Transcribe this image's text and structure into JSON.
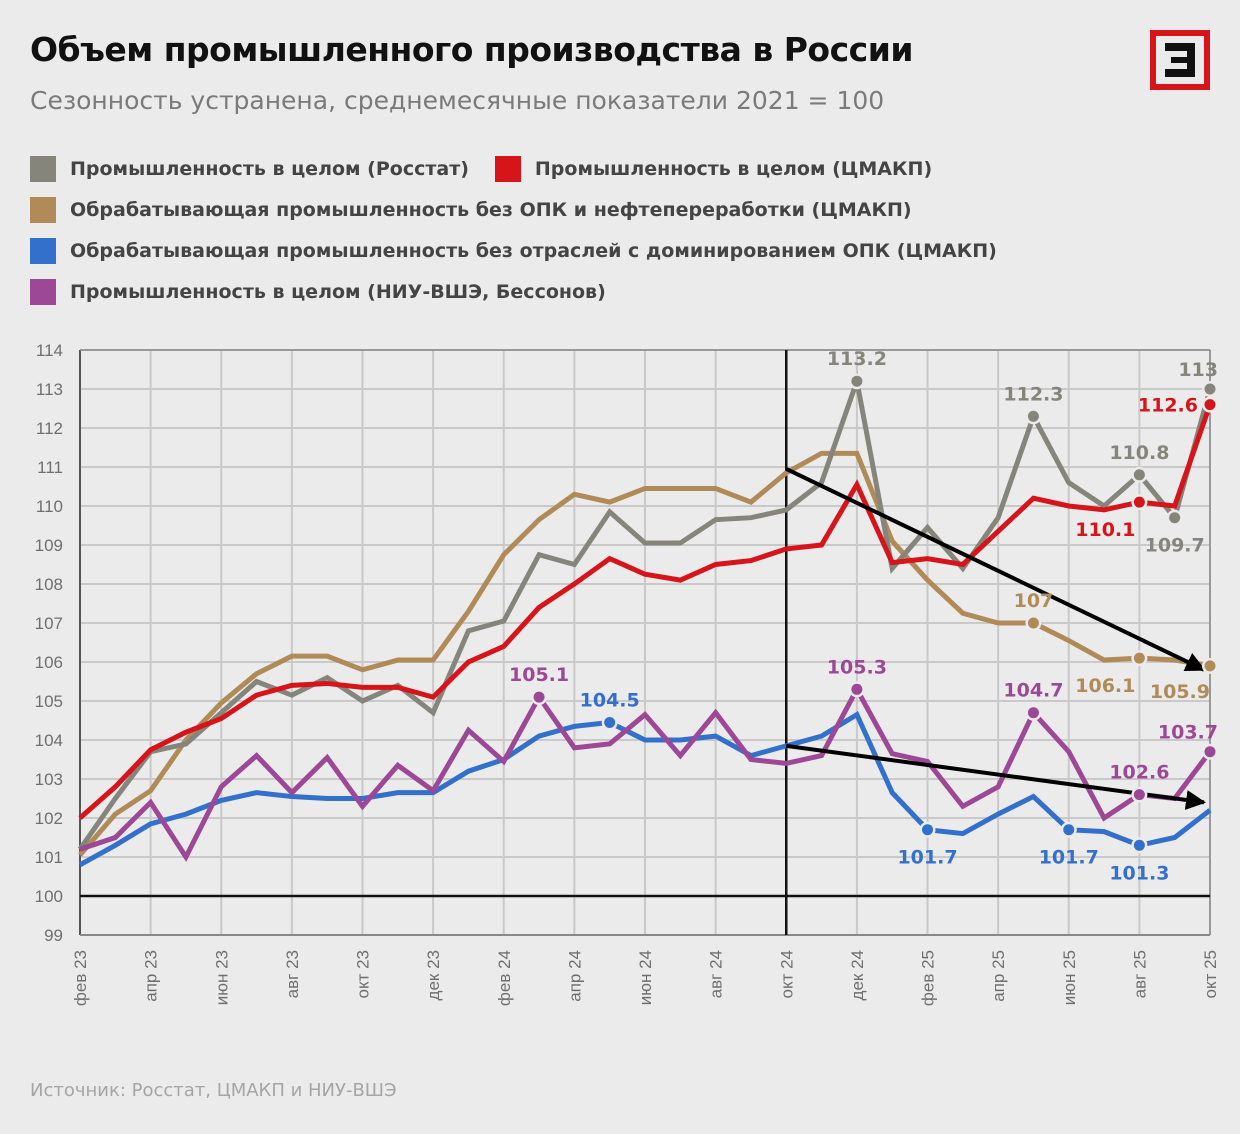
{
  "header": {
    "title": "Объем промышленного производства в России",
    "subtitle": "Сезонность устранена, среднемесячные показатели 2021 = 100",
    "logo_text": "Э"
  },
  "source": "Источник: Росстат, ЦМАКП и НИУ-ВШЭ",
  "chart_data": {
    "type": "line",
    "title": "Объем промышленного производства в России",
    "subtitle": "Сезонность устранена, среднемесячные показатели 2021 = 100",
    "ylim": [
      99,
      114
    ],
    "yticks": [
      99,
      100,
      101,
      102,
      103,
      104,
      105,
      106,
      107,
      108,
      109,
      110,
      111,
      112,
      113,
      114
    ],
    "grid": true,
    "legend_position": "top",
    "categories": [
      "фев 23",
      "мар 23",
      "апр 23",
      "май 23",
      "июн 23",
      "июл 23",
      "авг 23",
      "сен 23",
      "окт 23",
      "ноя 23",
      "дек 23",
      "янв 24",
      "фев 24",
      "мар 24",
      "апр 24",
      "май 24",
      "июн 24",
      "июл 24",
      "авг 24",
      "сен 24",
      "окт 24",
      "ноя 24",
      "дек 24",
      "янв 25",
      "фев 25",
      "мар 25",
      "апр 25",
      "май 25",
      "июн 25",
      "июл 25",
      "авг 25",
      "сен 25",
      "окт 25"
    ],
    "xtick_labels": [
      "фев 23",
      "апр 23",
      "июн 23",
      "авг 23",
      "окт 23",
      "дек 23",
      "фев 24",
      "апр 24",
      "июн 24",
      "авг 24",
      "окт 24",
      "дек 24",
      "фев 25",
      "апр 25",
      "июн 25",
      "авг 25",
      "окт 25"
    ],
    "reference_lines": {
      "vertical_at": "окт 24",
      "horizontal_at": 100
    },
    "trend_arrows": [
      {
        "from": [
          "окт 24",
          110.95
        ],
        "to": [
          "окт 25",
          105.8
        ]
      },
      {
        "from": [
          "окт 24",
          103.85
        ],
        "to": [
          "окт 25",
          102.4
        ]
      }
    ],
    "series": [
      {
        "name": "Промышленность в целом (Росстат)",
        "color": "#86857c",
        "values": [
          101.2,
          102.5,
          103.7,
          103.9,
          104.7,
          105.5,
          105.15,
          105.6,
          105.0,
          105.4,
          104.7,
          106.8,
          107.05,
          108.75,
          108.5,
          109.85,
          109.05,
          109.05,
          109.65,
          109.7,
          109.9,
          110.6,
          113.2,
          108.4,
          109.45,
          108.4,
          109.7,
          112.3,
          110.6,
          110.0,
          110.8,
          109.7,
          113.0
        ]
      },
      {
        "name": "Промышленность в целом (ЦМАКП)",
        "color": "#d7141a",
        "values": [
          102.0,
          102.8,
          103.75,
          104.2,
          104.55,
          105.15,
          105.4,
          105.45,
          105.35,
          105.35,
          105.1,
          106.0,
          106.4,
          107.4,
          108.0,
          108.65,
          108.25,
          108.1,
          108.5,
          108.6,
          108.9,
          109.0,
          110.55,
          108.55,
          108.65,
          108.5,
          109.35,
          110.2,
          110.0,
          109.9,
          110.1,
          110.0,
          112.6
        ]
      },
      {
        "name": "Обрабатывающая промышленность без ОПК и нефтепереработки (ЦМАКП)",
        "color": "#b08b58",
        "values": [
          101.05,
          102.1,
          102.7,
          104.0,
          104.95,
          105.7,
          106.15,
          106.15,
          105.8,
          106.05,
          106.05,
          107.3,
          108.75,
          109.65,
          110.3,
          110.1,
          110.45,
          110.45,
          110.45,
          110.1,
          110.85,
          111.35,
          111.35,
          109.1,
          108.1,
          107.25,
          107.0,
          107.0,
          106.55,
          106.05,
          106.1,
          106.05,
          105.9
        ]
      },
      {
        "name": "Обрабатывающая промышленность без отраслей с доминированием ОПК (ЦМАКП)",
        "color": "#3370cc",
        "values": [
          100.8,
          101.3,
          101.85,
          102.1,
          102.45,
          102.65,
          102.55,
          102.5,
          102.5,
          102.65,
          102.65,
          103.2,
          103.5,
          104.1,
          104.35,
          104.45,
          104.0,
          104.0,
          104.1,
          103.6,
          103.85,
          104.1,
          104.65,
          102.65,
          101.7,
          101.6,
          102.1,
          102.55,
          101.7,
          101.65,
          101.3,
          101.5,
          102.2
        ]
      },
      {
        "name": "Промышленность в целом (НИУ-ВШЭ, Бессонов)",
        "color": "#9c4896",
        "values": [
          101.2,
          101.5,
          102.4,
          101.0,
          102.8,
          103.6,
          102.65,
          103.55,
          102.3,
          103.35,
          102.7,
          104.25,
          103.45,
          105.1,
          103.8,
          103.9,
          104.65,
          103.6,
          104.7,
          103.5,
          103.4,
          103.6,
          105.3,
          103.65,
          103.45,
          102.3,
          102.8,
          104.7,
          103.7,
          102.0,
          102.6,
          102.5,
          103.7
        ]
      }
    ],
    "annotations": [
      {
        "series": 0,
        "at": "дек 24",
        "text": "113.2",
        "position": "above"
      },
      {
        "series": 0,
        "at": "май 25",
        "text": "112.3",
        "position": "above"
      },
      {
        "series": 0,
        "at": "авг 25",
        "text": "110.8",
        "position": "above"
      },
      {
        "series": 0,
        "at": "сен 25",
        "text": "109.7",
        "position": "below"
      },
      {
        "series": 0,
        "at": "окт 25",
        "text": "113",
        "position": "above-left"
      },
      {
        "series": 1,
        "at": "авг 25",
        "text": "110.1",
        "position": "below-left"
      },
      {
        "series": 1,
        "at": "окт 25",
        "text": "112.6",
        "position": "left"
      },
      {
        "series": 2,
        "at": "май 25",
        "text": "107",
        "position": "above"
      },
      {
        "series": 2,
        "at": "авг 25",
        "text": "106.1",
        "position": "below-left"
      },
      {
        "series": 2,
        "at": "окт 25",
        "text": "105.9",
        "position": "below-left"
      },
      {
        "series": 3,
        "at": "май 24",
        "text": "104.5",
        "position": "above"
      },
      {
        "series": 3,
        "at": "фев 25",
        "text": "101.7",
        "position": "below"
      },
      {
        "series": 3,
        "at": "июн 25",
        "text": "101.7",
        "position": "below"
      },
      {
        "series": 3,
        "at": "авг 25",
        "text": "101.3",
        "position": "below"
      },
      {
        "series": 4,
        "at": "мар 24",
        "text": "105.1",
        "position": "above"
      },
      {
        "series": 4,
        "at": "дек 24",
        "text": "105.3",
        "position": "above"
      },
      {
        "series": 4,
        "at": "май 25",
        "text": "104.7",
        "position": "above"
      },
      {
        "series": 4,
        "at": "авг 25",
        "text": "102.6",
        "position": "above"
      },
      {
        "series": 4,
        "at": "окт 25",
        "text": "103.7",
        "position": "above-left"
      }
    ]
  }
}
